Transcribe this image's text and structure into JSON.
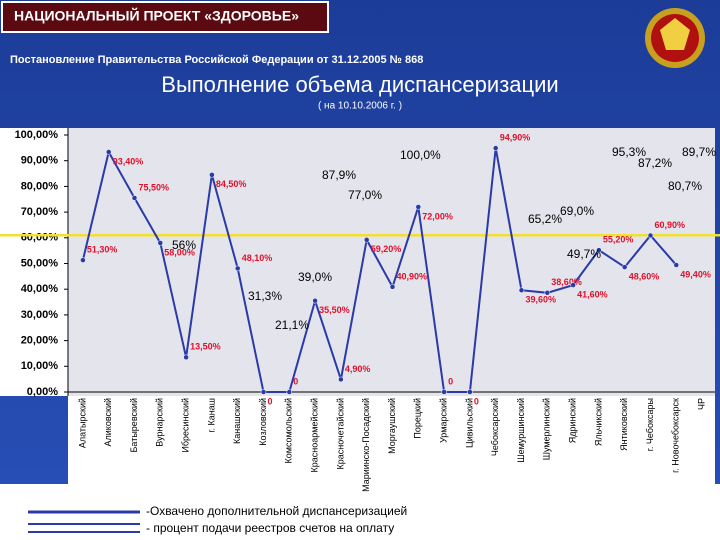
{
  "header": {
    "badge": "НАЦИОНАЛЬНЫЙ ПРОЕКТ «ЗДОРОВЬЕ»",
    "decree": "Постановление Правительства Российской Федерации от 31.12.2005 № 868"
  },
  "chart_data": {
    "type": "line",
    "title": "Выполнение объема диспансеризации",
    "subtitle": "( на 10.10.2006 г. )",
    "categories": [
      "Алатырский",
      "Аликовский",
      "Батыревский",
      "Вурнарский",
      "Ибресинский",
      "г. Канаш",
      "Канашский",
      "Козловский",
      "Комсомольский",
      "Красноармейский",
      "Красночетайский",
      "Мариинско-Посадский",
      "Моргаушский",
      "Порецкий",
      "Урмарский",
      "Цивильский",
      "Чебоксарский",
      "Шемуршинский",
      "Шумерлинский",
      "Ядринский",
      "Яльчикский",
      "Янтиковский",
      "г. Чебоксары",
      "г. Новочебоксарск",
      "ЧР"
    ],
    "values": [
      51.3,
      93.4,
      75.5,
      58.0,
      13.5,
      84.5,
      48.1,
      0,
      0,
      35.5,
      4.9,
      59.2,
      40.9,
      72.0,
      0,
      0,
      94.9,
      39.6,
      38.6,
      41.6,
      55.2,
      48.6,
      60.9,
      49.4,
      null
    ],
    "value_labels": [
      "51,30%",
      "93,40%",
      "75,50%",
      "58,00%",
      "13,50%",
      "84,50%",
      "48,10%",
      "0",
      "0",
      "35,50%",
      "4,90%",
      "59,20%",
      "40,90%",
      "72,00%",
      "0",
      "0",
      "94,90%",
      "39,60%",
      "38,60%",
      "41,60%",
      "55,20%",
      "48,60%",
      "60,90%",
      "49,40%",
      null
    ],
    "color": "#2a3aa8",
    "label_color": "#e0102a",
    "reference_line": {
      "value": 61,
      "color": "#f0e030"
    },
    "ylim": [
      0,
      100
    ],
    "yticks": [
      {
        "value": 0,
        "label": "0,00%"
      },
      {
        "value": 10,
        "label": "10,00%"
      },
      {
        "value": 20,
        "label": "20,00%"
      },
      {
        "value": 30,
        "label": "30,00%"
      },
      {
        "value": 40,
        "label": "40,00%"
      },
      {
        "value": 50,
        "label": "50,00%"
      },
      {
        "value": 60,
        "label": "60,00%"
      },
      {
        "value": 70,
        "label": "70,00%"
      },
      {
        "value": 80,
        "label": "80,00%"
      },
      {
        "value": 90,
        "label": "90,00%"
      },
      {
        "value": 100,
        "label": "100,00%"
      }
    ],
    "annotations": [
      "56%",
      "87,9%",
      "77,0%",
      "100,0%",
      "39,0%",
      "31,3%",
      "21,1%",
      "65,2%",
      "69,0%",
      "49,7%",
      "95,3%",
      "87,2%",
      "89,7%",
      "80,7%"
    ],
    "legend": [
      "-Охвачено дополнительной диспансеризацией",
      "- процент подачи реестров счетов на оплату"
    ]
  }
}
